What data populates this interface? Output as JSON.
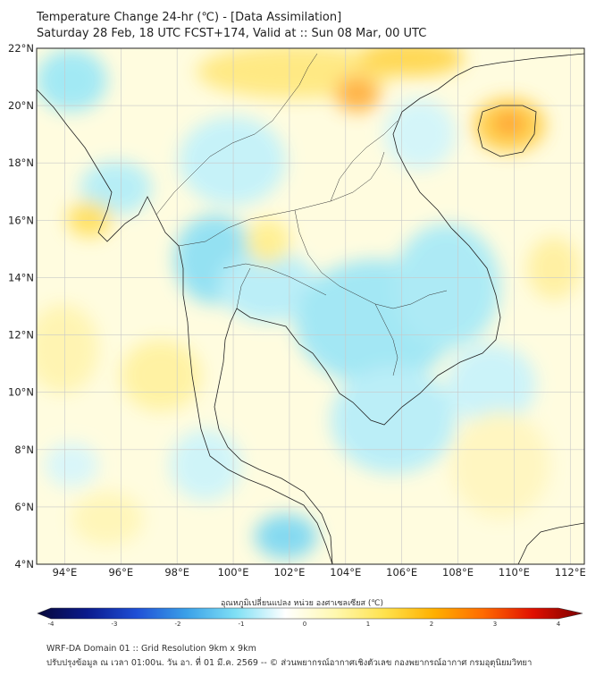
{
  "header": {
    "title": "Temperature Change 24-hr (℃) - [Data Assimilation]",
    "subtitle": "Saturday 28 Feb, 18 UTC FCST+174, Valid at :: Sun 08 Mar, 00 UTC"
  },
  "map": {
    "lat_labels": [
      "22°N",
      "20°N",
      "18°N",
      "16°N",
      "14°N",
      "12°N",
      "10°N",
      "8°N",
      "6°N",
      "4°N"
    ],
    "lon_labels": [
      "94°E",
      "96°E",
      "98°E",
      "100°E",
      "102°E",
      "104°E",
      "106°E",
      "108°E",
      "110°E",
      "112°E"
    ],
    "lat_range": [
      4,
      22
    ],
    "lon_range": [
      93,
      112.5
    ]
  },
  "colorbar": {
    "title": "อุณหภูมิเปลี่ยนแปลง หน่วย องศาเซลเซียส (℃)",
    "ticks": [
      "-4",
      "-3",
      "-2",
      "-1",
      "0",
      "1",
      "2",
      "3",
      "4"
    ],
    "range": [
      -4,
      4
    ],
    "colors": [
      "#08083a",
      "#0a1a8c",
      "#1f4fd6",
      "#3aa0e8",
      "#7fe0f5",
      "#ffffff",
      "#fff8b0",
      "#ffe24d",
      "#ffb000",
      "#ff6a00",
      "#e01000",
      "#7a0000"
    ]
  },
  "footer": {
    "line1": "WRF-DA Domain 01 :: Grid Resolution 9km x 9km",
    "line2": "ปรับปรุงข้อมูล ณ เวลา 01:00น. วัน อา. ที่ 01 มี.ค. 2569 -- © ส่วนพยากรณ์อากาศเชิงตัวเลข กองพยากรณ์อากาศ กรมอุตุนิยมวิทยา"
  }
}
